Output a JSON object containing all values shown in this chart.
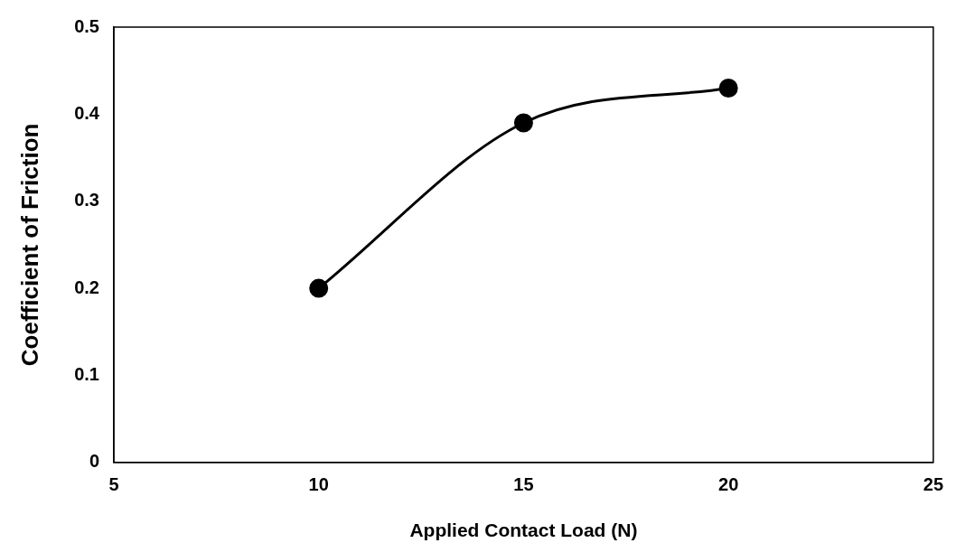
{
  "chart_data": {
    "type": "line",
    "xlabel": "Applied Contact Load (N)",
    "ylabel": "Coefficient of Friction",
    "x": [
      10,
      15,
      20
    ],
    "series": [
      {
        "color": "#000000",
        "values": [
          0.2,
          0.39,
          0.43
        ]
      }
    ],
    "xlim": [
      5,
      25
    ],
    "xticks": [
      5,
      10,
      15,
      20,
      25
    ],
    "ylim": [
      0,
      0.5
    ],
    "yticks": [
      0,
      0.1,
      0.2,
      0.3,
      0.4,
      0.5
    ],
    "grid": false,
    "legend": false,
    "marker": "circle",
    "line_style": "solid"
  }
}
